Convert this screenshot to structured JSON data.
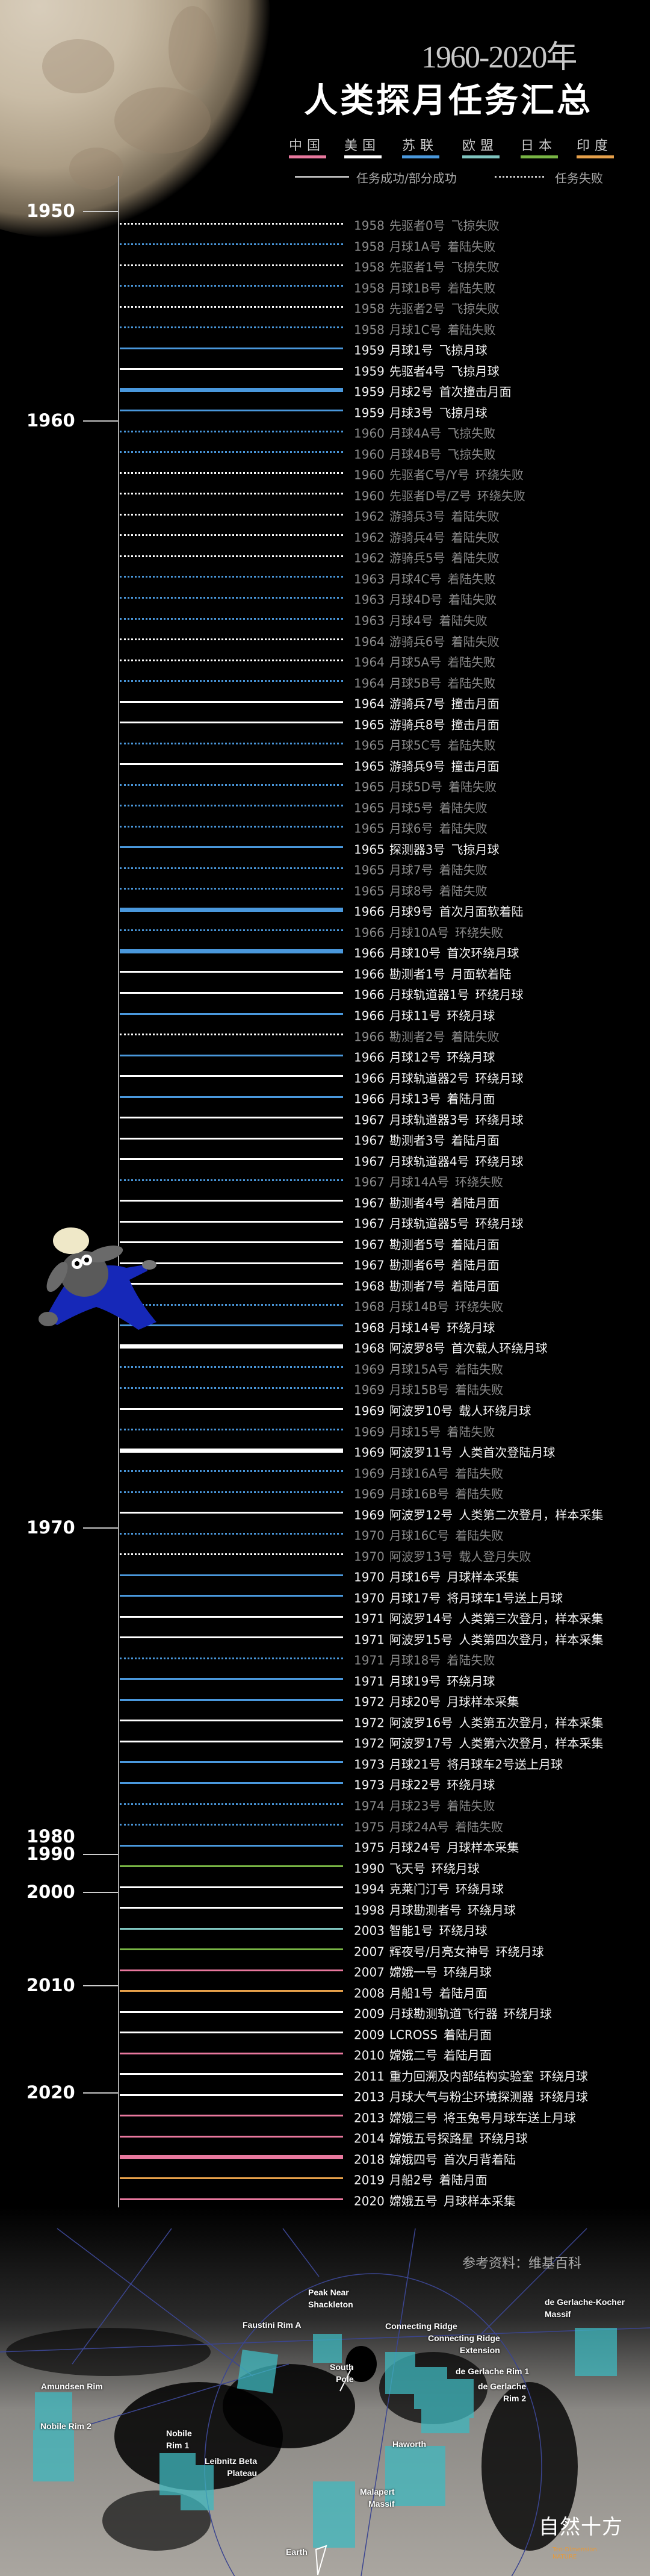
{
  "header": {
    "title_years": "1960-2020年",
    "title_main": "人类探月任务汇总"
  },
  "legend": {
    "countries": [
      {
        "label": "中国",
        "key": "china",
        "color": "#e8789e"
      },
      {
        "label": "美国",
        "key": "usa",
        "color": "#ffffff"
      },
      {
        "label": "苏联",
        "key": "ussr",
        "color": "#4a98dc"
      },
      {
        "label": "欧盟",
        "key": "eu",
        "color": "#7fc4bf"
      },
      {
        "label": "日本",
        "key": "japan",
        "color": "#78b444"
      },
      {
        "label": "印度",
        "key": "india",
        "color": "#e6a04a"
      }
    ],
    "success_label": "任务成功/部分成功",
    "fail_label": "任务失败"
  },
  "decades": [
    {
      "label": "1950"
    },
    {
      "label": "1960"
    },
    {
      "label": "1970"
    },
    {
      "label": "1980"
    },
    {
      "label": "1990"
    },
    {
      "label": "2000"
    },
    {
      "label": "2010"
    },
    {
      "label": "2020"
    }
  ],
  "missions": [
    {
      "year": "1958",
      "name": "先驱者0号",
      "result": "飞掠失败",
      "country": "usa",
      "status": "fail"
    },
    {
      "year": "1958",
      "name": "月球1A号",
      "result": "着陆失败",
      "country": "ussr",
      "status": "fail"
    },
    {
      "year": "1958",
      "name": "先驱者1号",
      "result": "飞掠失败",
      "country": "usa",
      "status": "fail"
    },
    {
      "year": "1958",
      "name": "月球1B号",
      "result": "着陆失败",
      "country": "ussr",
      "status": "fail"
    },
    {
      "year": "1958",
      "name": "先驱者2号",
      "result": "飞掠失败",
      "country": "usa",
      "status": "fail"
    },
    {
      "year": "1958",
      "name": "月球1C号",
      "result": "着陆失败",
      "country": "ussr",
      "status": "fail"
    },
    {
      "year": "1959",
      "name": "月球1号",
      "result": "飞掠月球",
      "country": "ussr",
      "status": "success"
    },
    {
      "year": "1959",
      "name": "先驱者4号",
      "result": "飞掠月球",
      "country": "usa",
      "status": "success"
    },
    {
      "year": "1959",
      "name": "月球2号",
      "result": "首次撞击月面",
      "country": "ussr",
      "status": "success",
      "milestone": true
    },
    {
      "year": "1959",
      "name": "月球3号",
      "result": "飞掠月球",
      "country": "ussr",
      "status": "success"
    },
    {
      "year": "1960",
      "name": "月球4A号",
      "result": "飞掠失败",
      "country": "ussr",
      "status": "fail"
    },
    {
      "year": "1960",
      "name": "月球4B号",
      "result": "飞掠失败",
      "country": "ussr",
      "status": "fail"
    },
    {
      "year": "1960",
      "name": "先驱者C号/Y号",
      "result": "环绕失败",
      "country": "usa",
      "status": "fail"
    },
    {
      "year": "1960",
      "name": "先驱者D号/Z号",
      "result": "环绕失败",
      "country": "usa",
      "status": "fail"
    },
    {
      "year": "1962",
      "name": "游骑兵3号",
      "result": "着陆失败",
      "country": "usa",
      "status": "fail"
    },
    {
      "year": "1962",
      "name": "游骑兵4号",
      "result": "着陆失败",
      "country": "usa",
      "status": "fail"
    },
    {
      "year": "1962",
      "name": "游骑兵5号",
      "result": "着陆失败",
      "country": "usa",
      "status": "fail"
    },
    {
      "year": "1963",
      "name": "月球4C号",
      "result": "着陆失败",
      "country": "ussr",
      "status": "fail"
    },
    {
      "year": "1963",
      "name": "月球4D号",
      "result": "着陆失败",
      "country": "ussr",
      "status": "fail"
    },
    {
      "year": "1963",
      "name": "月球4号",
      "result": "着陆失败",
      "country": "ussr",
      "status": "fail"
    },
    {
      "year": "1964",
      "name": "游骑兵6号",
      "result": "着陆失败",
      "country": "usa",
      "status": "fail"
    },
    {
      "year": "1964",
      "name": "月球5A号",
      "result": "着陆失败",
      "country": "usa",
      "status": "fail"
    },
    {
      "year": "1964",
      "name": "月球5B号",
      "result": "着陆失败",
      "country": "ussr",
      "status": "fail"
    },
    {
      "year": "1964",
      "name": "游骑兵7号",
      "result": "撞击月面",
      "country": "usa",
      "status": "success"
    },
    {
      "year": "1965",
      "name": "游骑兵8号",
      "result": "撞击月面",
      "country": "usa",
      "status": "success"
    },
    {
      "year": "1965",
      "name": "月球5C号",
      "result": "着陆失败",
      "country": "ussr",
      "status": "fail"
    },
    {
      "year": "1965",
      "name": "游骑兵9号",
      "result": "撞击月面",
      "country": "usa",
      "status": "success"
    },
    {
      "year": "1965",
      "name": "月球5D号",
      "result": "着陆失败",
      "country": "ussr",
      "status": "fail"
    },
    {
      "year": "1965",
      "name": "月球5号",
      "result": "着陆失败",
      "country": "ussr",
      "status": "fail"
    },
    {
      "year": "1965",
      "name": "月球6号",
      "result": "着陆失败",
      "country": "ussr",
      "status": "fail"
    },
    {
      "year": "1965",
      "name": "探测器3号",
      "result": "飞掠月球",
      "country": "ussr",
      "status": "success"
    },
    {
      "year": "1965",
      "name": "月球7号",
      "result": "着陆失败",
      "country": "ussr",
      "status": "fail"
    },
    {
      "year": "1965",
      "name": "月球8号",
      "result": "着陆失败",
      "country": "ussr",
      "status": "fail"
    },
    {
      "year": "1966",
      "name": "月球9号",
      "result": "首次月面软着陆",
      "country": "ussr",
      "status": "success",
      "milestone": true
    },
    {
      "year": "1966",
      "name": "月球10A号",
      "result": "环绕失败",
      "country": "ussr",
      "status": "fail"
    },
    {
      "year": "1966",
      "name": "月球10号",
      "result": "首次环绕月球",
      "country": "ussr",
      "status": "success",
      "milestone": true
    },
    {
      "year": "1966",
      "name": "勘测者1号",
      "result": "月面软着陆",
      "country": "usa",
      "status": "success"
    },
    {
      "year": "1966",
      "name": "月球轨道器1号",
      "result": "环绕月球",
      "country": "usa",
      "status": "success"
    },
    {
      "year": "1966",
      "name": "月球11号",
      "result": "环绕月球",
      "country": "ussr",
      "status": "success"
    },
    {
      "year": "1966",
      "name": "勘测者2号",
      "result": "着陆失败",
      "country": "usa",
      "status": "fail"
    },
    {
      "year": "1966",
      "name": "月球12号",
      "result": "环绕月球",
      "country": "ussr",
      "status": "success"
    },
    {
      "year": "1966",
      "name": "月球轨道器2号",
      "result": "环绕月球",
      "country": "usa",
      "status": "success"
    },
    {
      "year": "1966",
      "name": "月球13号",
      "result": "着陆月面",
      "country": "ussr",
      "status": "success"
    },
    {
      "year": "1967",
      "name": "月球轨道器3号",
      "result": "环绕月球",
      "country": "usa",
      "status": "success"
    },
    {
      "year": "1967",
      "name": "勘测者3号",
      "result": "着陆月面",
      "country": "usa",
      "status": "success"
    },
    {
      "year": "1967",
      "name": "月球轨道器4号",
      "result": "环绕月球",
      "country": "usa",
      "status": "success"
    },
    {
      "year": "1967",
      "name": "月球14A号",
      "result": "环绕失败",
      "country": "ussr",
      "status": "fail"
    },
    {
      "year": "1967",
      "name": "勘测者4号",
      "result": "着陆月面",
      "country": "usa",
      "status": "success"
    },
    {
      "year": "1967",
      "name": "月球轨道器5号",
      "result": "环绕月球",
      "country": "usa",
      "status": "success"
    },
    {
      "year": "1967",
      "name": "勘测者5号",
      "result": "着陆月面",
      "country": "usa",
      "status": "success"
    },
    {
      "year": "1967",
      "name": "勘测者6号",
      "result": "着陆月面",
      "country": "usa",
      "status": "success"
    },
    {
      "year": "1968",
      "name": "勘测者7号",
      "result": "着陆月面",
      "country": "usa",
      "status": "success"
    },
    {
      "year": "1968",
      "name": "月球14B号",
      "result": "环绕失败",
      "country": "ussr",
      "status": "fail"
    },
    {
      "year": "1968",
      "name": "月球14号",
      "result": "环绕月球",
      "country": "ussr",
      "status": "success"
    },
    {
      "year": "1968",
      "name": "阿波罗8号",
      "result": "首次载人环绕月球",
      "country": "usa",
      "status": "success",
      "milestone": true
    },
    {
      "year": "1969",
      "name": "月球15A号",
      "result": "着陆失败",
      "country": "ussr",
      "status": "fail"
    },
    {
      "year": "1969",
      "name": "月球15B号",
      "result": "着陆失败",
      "country": "ussr",
      "status": "fail"
    },
    {
      "year": "1969",
      "name": "阿波罗10号",
      "result": "载人环绕月球",
      "country": "usa",
      "status": "success"
    },
    {
      "year": "1969",
      "name": "月球15号",
      "result": "着陆失败",
      "country": "ussr",
      "status": "fail"
    },
    {
      "year": "1969",
      "name": "阿波罗11号",
      "result": "人类首次登陆月球",
      "country": "usa",
      "status": "success",
      "milestone": true
    },
    {
      "year": "1969",
      "name": "月球16A号",
      "result": "着陆失败",
      "country": "ussr",
      "status": "fail"
    },
    {
      "year": "1969",
      "name": "月球16B号",
      "result": "着陆失败",
      "country": "ussr",
      "status": "fail"
    },
    {
      "year": "1969",
      "name": "阿波罗12号",
      "result": "人类第二次登月，样本采集",
      "country": "usa",
      "status": "success"
    },
    {
      "year": "1970",
      "name": "月球16C号",
      "result": "着陆失败",
      "country": "ussr",
      "status": "fail"
    },
    {
      "year": "1970",
      "name": "阿波罗13号",
      "result": "载人登月失败",
      "country": "usa",
      "status": "fail"
    },
    {
      "year": "1970",
      "name": "月球16号",
      "result": "月球样本采集",
      "country": "ussr",
      "status": "success"
    },
    {
      "year": "1970",
      "name": "月球17号",
      "result": "将月球车1号送上月球",
      "country": "ussr",
      "status": "success"
    },
    {
      "year": "1971",
      "name": "阿波罗14号",
      "result": "人类第三次登月，样本采集",
      "country": "usa",
      "status": "success"
    },
    {
      "year": "1971",
      "name": "阿波罗15号",
      "result": "人类第四次登月，样本采集",
      "country": "usa",
      "status": "success"
    },
    {
      "year": "1971",
      "name": "月球18号",
      "result": "着陆失败",
      "country": "ussr",
      "status": "fail"
    },
    {
      "year": "1971",
      "name": "月球19号",
      "result": "环绕月球",
      "country": "ussr",
      "status": "success"
    },
    {
      "year": "1972",
      "name": "月球20号",
      "result": "月球样本采集",
      "country": "ussr",
      "status": "success"
    },
    {
      "year": "1972",
      "name": "阿波罗16号",
      "result": "人类第五次登月，样本采集",
      "country": "usa",
      "status": "success"
    },
    {
      "year": "1972",
      "name": "阿波罗17号",
      "result": "人类第六次登月，样本采集",
      "country": "usa",
      "status": "success"
    },
    {
      "year": "1973",
      "name": "月球21号",
      "result": "将月球车2号送上月球",
      "country": "ussr",
      "status": "success"
    },
    {
      "year": "1973",
      "name": "月球22号",
      "result": "环绕月球",
      "country": "ussr",
      "status": "success"
    },
    {
      "year": "1974",
      "name": "月球23号",
      "result": "着陆失败",
      "country": "ussr",
      "status": "fail"
    },
    {
      "year": "1975",
      "name": "月球24A号",
      "result": "着陆失败",
      "country": "ussr",
      "status": "fail"
    },
    {
      "year": "1975",
      "name": "月球24号",
      "result": "月球样本采集",
      "country": "ussr",
      "status": "success"
    },
    {
      "year": "1990",
      "name": "飞天号",
      "result": "环绕月球",
      "country": "japan",
      "status": "success"
    },
    {
      "year": "1994",
      "name": "克莱门汀号",
      "result": "环绕月球",
      "country": "usa",
      "status": "success"
    },
    {
      "year": "1998",
      "name": "月球勘测者号",
      "result": "环绕月球",
      "country": "usa",
      "status": "success"
    },
    {
      "year": "2003",
      "name": "智能1号",
      "result": "环绕月球",
      "country": "eu",
      "status": "success"
    },
    {
      "year": "2007",
      "name": "辉夜号/月亮女神号",
      "result": "环绕月球",
      "country": "japan",
      "status": "success"
    },
    {
      "year": "2007",
      "name": "嫦娥一号",
      "result": "环绕月球",
      "country": "china",
      "status": "success"
    },
    {
      "year": "2008",
      "name": "月船1号",
      "result": "着陆月面",
      "country": "india",
      "status": "success"
    },
    {
      "year": "2009",
      "name": "月球勘测轨道飞行器",
      "result": "环绕月球",
      "country": "usa",
      "status": "success"
    },
    {
      "year": "2009",
      "name": "LCROSS",
      "result": "着陆月面",
      "country": "usa",
      "status": "success"
    },
    {
      "year": "2010",
      "name": "嫦娥二号",
      "result": "着陆月面",
      "country": "china",
      "status": "success"
    },
    {
      "year": "2011",
      "name": "重力回溯及内部结构实验室",
      "result": "环绕月球",
      "country": "usa",
      "status": "success"
    },
    {
      "year": "2013",
      "name": "月球大气与粉尘环境探测器",
      "result": "环绕月球",
      "country": "usa",
      "status": "success"
    },
    {
      "year": "2013",
      "name": "嫦娥三号",
      "result": "将玉兔号月球车送上月球",
      "country": "china",
      "status": "success"
    },
    {
      "year": "2014",
      "name": "嫦娥五号探路星",
      "result": "环绕月球",
      "country": "china",
      "status": "success"
    },
    {
      "year": "2018",
      "name": "嫦娥四号",
      "result": "首次月背着陆",
      "country": "china",
      "status": "success",
      "milestone": true
    },
    {
      "year": "2019",
      "name": "月船2号",
      "result": "着陆月面",
      "country": "india",
      "status": "success"
    },
    {
      "year": "2020",
      "name": "嫦娥五号",
      "result": "月球样本采集",
      "country": "china",
      "status": "success"
    }
  ],
  "reference": "参考资料：维基百科",
  "map_labels": {
    "peak_near_shackleton": [
      "Peak Near",
      "Shackleton"
    ],
    "faustini_rim_a": [
      "Faustini Rim A"
    ],
    "connecting_ridge": [
      "Connecting Ridge"
    ],
    "connecting_ridge_extension": [
      "Connecting Ridge",
      "Extension"
    ],
    "south_pole": [
      "South",
      "Pole"
    ],
    "de_gerlache_rim_1": [
      "de Gerlache Rim 1"
    ],
    "de_gerlache_kocher_massif": [
      "de Gerlache-Kocher",
      "Massif"
    ],
    "amundsen_rim": [
      "Amundsen Rim"
    ],
    "nobile_rim_2": [
      "Nobile Rim 2"
    ],
    "nobile_rim_1": [
      "Nobile",
      "Rim 1"
    ],
    "leibnitz_beta_plateau": [
      "Leibnitz Beta",
      "Plateau"
    ],
    "haworth": [
      "Haworth"
    ],
    "malapert_massif": [
      "Malapert",
      "Massif"
    ],
    "de_gerlache_rim_2": [
      "de Gerlache",
      "Rim 2"
    ],
    "earth": [
      "Earth"
    ]
  },
  "logo": {
    "main": "自然十方",
    "sub": "Ten-Dimension NATURE"
  }
}
